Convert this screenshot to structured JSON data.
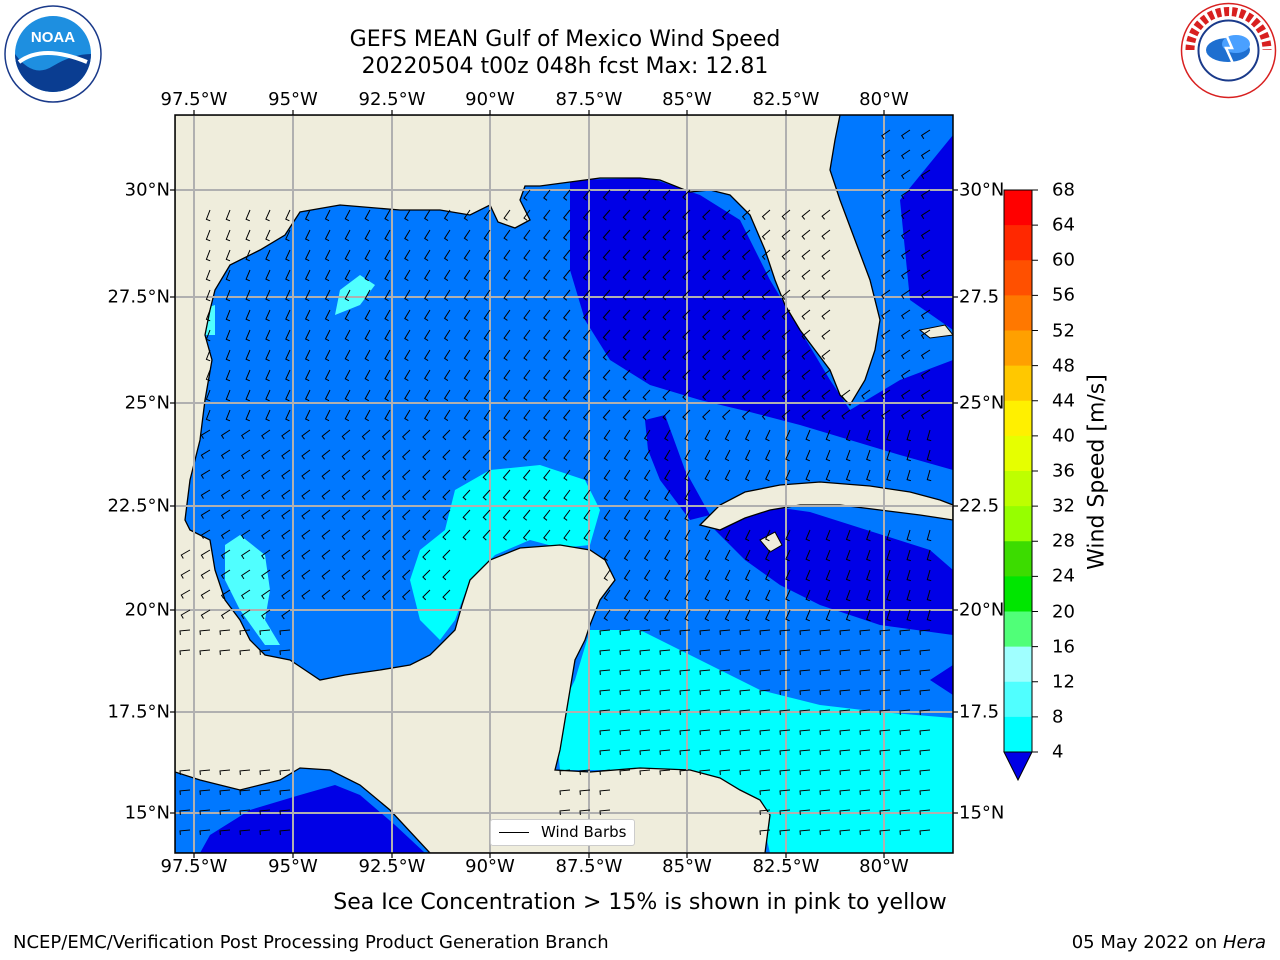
{
  "title_line1": "GEFS MEAN Gulf of Mexico Wind Speed",
  "title_line2": "20220504 t00z 048h fcst   Max: 12.81",
  "lon_labels": [
    "97.5°W",
    "95°W",
    "92.5°W",
    "90°W",
    "87.5°W",
    "85°W",
    "82.5°W",
    "80°W"
  ],
  "lat_labels": [
    "30°N",
    "27.5°N",
    "25°N",
    "22.5°N",
    "20°N",
    "17.5°N",
    "15°N"
  ],
  "lat_labels_right": [
    "30°N",
    "27.5",
    "25°N",
    "22.5",
    "20°N",
    "17.5",
    "15°N"
  ],
  "colorbar": {
    "title": "Wind Speed [m/s]",
    "ticks": [
      "68",
      "64",
      "60",
      "56",
      "52",
      "48",
      "44",
      "40",
      "36",
      "32",
      "28",
      "24",
      "20",
      "16",
      "12",
      "8",
      "4"
    ],
    "colors": [
      "#ff0000",
      "#ff2800",
      "#ff5000",
      "#ff7800",
      "#ffa000",
      "#ffc800",
      "#fff000",
      "#e6ff00",
      "#beff00",
      "#96ff00",
      "#3cdc00",
      "#00e600",
      "#50ff78",
      "#a0ffff",
      "#50ffff",
      "#00ffff",
      "#0078ff"
    ],
    "extend_color": "#0000e6"
  },
  "legend_label": "Wind Barbs",
  "note": "Sea Ice Concentration > 15% is shown in pink to yellow",
  "footer_left": "NCEP/EMC/Verification Post Processing Product Generation Branch",
  "footer_date": "05 May 2022 on ",
  "footer_machine": "Hera",
  "logo_left": "NOAA",
  "logo_right_text": "NATIONAL WEATHER SERVICE",
  "colors": {
    "land": "#efeddc",
    "wind_4_8": "#0078ff",
    "wind_lt_4": "#0000e6",
    "wind_8_12": "#00ffff",
    "wind_12_16": "#50ffff",
    "grid": "#b0b0b0"
  }
}
